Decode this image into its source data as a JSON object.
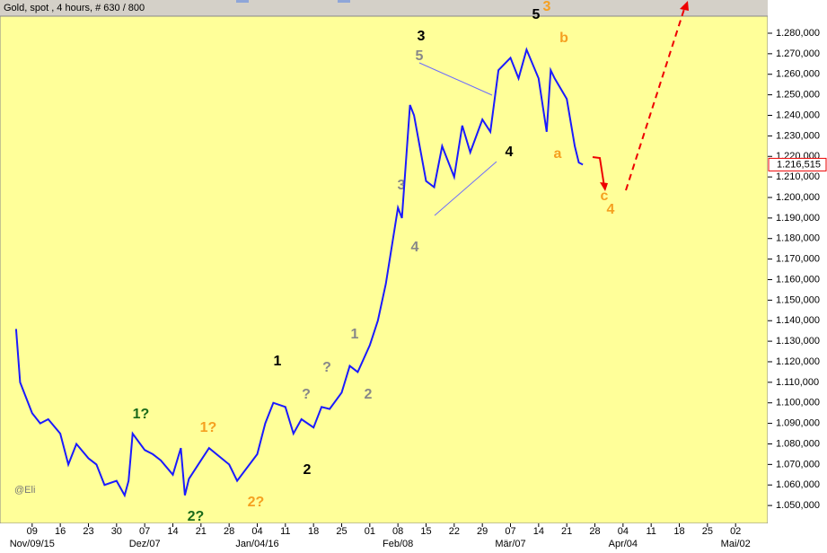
{
  "chart_data": {
    "type": "line",
    "title": "Gold, spot , 4 hours, # 630 / 800",
    "watermark": "@Eli",
    "last_price_label": "1.216,515",
    "x": [
      "2015-11-05",
      "2015-11-06",
      "2015-11-09",
      "2015-11-11",
      "2015-11-13",
      "2015-11-16",
      "2015-11-18",
      "2015-11-20",
      "2015-11-23",
      "2015-11-25",
      "2015-11-27",
      "2015-11-30",
      "2015-12-02",
      "2015-12-03",
      "2015-12-04",
      "2015-12-07",
      "2015-12-09",
      "2015-12-11",
      "2015-12-14",
      "2015-12-16",
      "2015-12-17",
      "2015-12-18",
      "2015-12-21",
      "2015-12-23",
      "2015-12-28",
      "2015-12-30",
      "2016-01-04",
      "2016-01-06",
      "2016-01-08",
      "2016-01-11",
      "2016-01-13",
      "2016-01-15",
      "2016-01-18",
      "2016-01-20",
      "2016-01-22",
      "2016-01-25",
      "2016-01-27",
      "2016-01-29",
      "2016-02-01",
      "2016-02-03",
      "2016-02-05",
      "2016-02-08",
      "2016-02-09",
      "2016-02-11",
      "2016-02-12",
      "2016-02-15",
      "2016-02-17",
      "2016-02-19",
      "2016-02-22",
      "2016-02-24",
      "2016-02-26",
      "2016-02-29",
      "2016-03-02",
      "2016-03-04",
      "2016-03-07",
      "2016-03-09",
      "2016-03-11",
      "2016-03-14",
      "2016-03-16",
      "2016-03-17",
      "2016-03-18",
      "2016-03-21",
      "2016-03-23",
      "2016-03-24",
      "2016-03-25"
    ],
    "series": [
      {
        "name": "Gold, spot",
        "color": "#1a1aff",
        "values": [
          1.136,
          1.11,
          1.095,
          1.09,
          1.092,
          1.085,
          1.07,
          1.08,
          1.073,
          1.07,
          1.06,
          1.062,
          1.055,
          1.062,
          1.085,
          1.077,
          1.075,
          1.072,
          1.065,
          1.078,
          1.055,
          1.063,
          1.072,
          1.078,
          1.07,
          1.062,
          1.075,
          1.09,
          1.1,
          1.098,
          1.085,
          1.092,
          1.088,
          1.098,
          1.097,
          1.105,
          1.118,
          1.115,
          1.128,
          1.14,
          1.158,
          1.195,
          1.19,
          1.245,
          1.24,
          1.208,
          1.205,
          1.225,
          1.21,
          1.235,
          1.222,
          1.238,
          1.232,
          1.262,
          1.268,
          1.258,
          1.272,
          1.258,
          1.232,
          1.262,
          1.258,
          1.248,
          1.225,
          1.217,
          1.216
        ]
      }
    ],
    "xlim": [
      "2015-11-01",
      "2016-05-10"
    ],
    "xticks": [
      {
        "value": "2015-11-09",
        "label": "09"
      },
      {
        "value": "2015-11-16",
        "label": "16"
      },
      {
        "value": "2015-11-23",
        "label": "23"
      },
      {
        "value": "2015-11-30",
        "label": "30"
      },
      {
        "value": "2015-12-07",
        "label": "07"
      },
      {
        "value": "2015-12-14",
        "label": "14"
      },
      {
        "value": "2015-12-21",
        "label": "21"
      },
      {
        "value": "2015-12-28",
        "label": "28"
      },
      {
        "value": "2016-01-04",
        "label": "04"
      },
      {
        "value": "2016-01-11",
        "label": "11"
      },
      {
        "value": "2016-01-18",
        "label": "18"
      },
      {
        "value": "2016-01-25",
        "label": "25"
      },
      {
        "value": "2016-02-01",
        "label": "01"
      },
      {
        "value": "2016-02-08",
        "label": "08"
      },
      {
        "value": "2016-02-15",
        "label": "15"
      },
      {
        "value": "2016-02-22",
        "label": "22"
      },
      {
        "value": "2016-02-29",
        "label": "29"
      },
      {
        "value": "2016-03-07",
        "label": "07"
      },
      {
        "value": "2016-03-14",
        "label": "14"
      },
      {
        "value": "2016-03-21",
        "label": "21"
      },
      {
        "value": "2016-03-28",
        "label": "28"
      },
      {
        "value": "2016-04-04",
        "label": "04"
      },
      {
        "value": "2016-04-11",
        "label": "11"
      },
      {
        "value": "2016-04-18",
        "label": "18"
      },
      {
        "value": "2016-04-25",
        "label": "25"
      },
      {
        "value": "2016-05-02",
        "label": "02"
      }
    ],
    "month_labels": [
      {
        "value": "2015-11-09",
        "label": "Nov/09/15"
      },
      {
        "value": "2015-12-07",
        "label": "Dez/07"
      },
      {
        "value": "2016-01-04",
        "label": "Jan/04/16"
      },
      {
        "value": "2016-02-08",
        "label": "Feb/08"
      },
      {
        "value": "2016-03-07",
        "label": "Mär/07"
      },
      {
        "value": "2016-04-04",
        "label": "Apr/04"
      },
      {
        "value": "2016-05-02",
        "label": "Mai/02"
      }
    ],
    "ylim": [
      1.0413,
      1.2883
    ],
    "yticks": [
      {
        "value": 1.05,
        "label": "1.050,000"
      },
      {
        "value": 1.06,
        "label": "1.060,000"
      },
      {
        "value": 1.07,
        "label": "1.070,000"
      },
      {
        "value": 1.08,
        "label": "1.080,000"
      },
      {
        "value": 1.09,
        "label": "1.090,000"
      },
      {
        "value": 1.1,
        "label": "1.100,000"
      },
      {
        "value": 1.11,
        "label": "1.110,000"
      },
      {
        "value": 1.12,
        "label": "1.120,000"
      },
      {
        "value": 1.13,
        "label": "1.130,000"
      },
      {
        "value": 1.14,
        "label": "1.140,000"
      },
      {
        "value": 1.15,
        "label": "1.150,000"
      },
      {
        "value": 1.16,
        "label": "1.160,000"
      },
      {
        "value": 1.17,
        "label": "1.170,000"
      },
      {
        "value": 1.18,
        "label": "1.180,000"
      },
      {
        "value": 1.19,
        "label": "1.190,000"
      },
      {
        "value": 1.2,
        "label": "1.200,000"
      },
      {
        "value": 1.21,
        "label": "1.210,000"
      },
      {
        "value": 1.22,
        "label": "1.220,000"
      },
      {
        "value": 1.23,
        "label": "1.230,000"
      },
      {
        "value": 1.24,
        "label": "1.240,000"
      },
      {
        "value": 1.25,
        "label": "1.250,000"
      },
      {
        "value": 1.26,
        "label": "1.260,000"
      },
      {
        "value": 1.27,
        "label": "1.270,000"
      },
      {
        "value": 1.28,
        "label": "1.280,000"
      }
    ],
    "grid": false,
    "annotations": [
      "3",
      "5",
      "5",
      "3",
      "b",
      "4",
      "a",
      "c",
      "4",
      "3",
      "4",
      "1",
      "2",
      "?",
      "?",
      "1",
      "2",
      "1?",
      "2?",
      "1?",
      "2?"
    ]
  }
}
